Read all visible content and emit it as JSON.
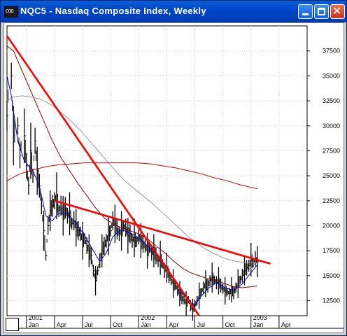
{
  "window": {
    "title": "NQC5 - Nasdaq Composite Index, Weekly",
    "icon": "chart-app-icon",
    "icon_text": "CQG",
    "buttons": {
      "minimize": "minimize-icon",
      "maximize": "maximize-icon",
      "close": "close-icon"
    },
    "close_glyph": "✕"
  },
  "colors": {
    "titlebar": "#0046c8",
    "price": "#000000",
    "ma_fast": "#0000cc",
    "ma_mid": "#880000",
    "ma_slow": "#999999",
    "ma_long": "#cc0000",
    "trendline": "#ff0000",
    "grid": "#d0d0d0"
  },
  "chart_data": {
    "type": "line",
    "title": "",
    "y_axis": {
      "ticks": [
        "37500",
        "35000",
        "32500",
        "30000",
        "27500",
        "25000",
        "22500",
        "20000",
        "17500",
        "15000",
        "12500"
      ],
      "tick_values": [
        37500,
        35000,
        32500,
        30000,
        27500,
        25000,
        22500,
        20000,
        17500,
        15000,
        12500
      ],
      "ylim": [
        11000,
        40000
      ]
    },
    "x_axis": {
      "years": [
        {
          "label": "2001",
          "week": 0
        },
        {
          "label": "2002",
          "week": 52
        },
        {
          "label": "2003",
          "week": 104
        }
      ],
      "months": [
        {
          "label": "Jan",
          "week": 0
        },
        {
          "label": "Apr",
          "week": 13
        },
        {
          "label": "Jul",
          "week": 26
        },
        {
          "label": "Oct",
          "week": 39
        },
        {
          "label": "Jan",
          "week": 52
        },
        {
          "label": "Apr",
          "week": 65
        },
        {
          "label": "Jul",
          "week": 78
        },
        {
          "label": "Oct",
          "week": 91
        },
        {
          "label": "Jan",
          "week": 104
        },
        {
          "label": "Apr",
          "week": 117
        }
      ],
      "xlim": [
        -9,
        130
      ]
    },
    "grid": true,
    "price_key": [
      [
        -9,
        31000
      ],
      [
        -7,
        35000
      ],
      [
        -6,
        29000
      ],
      [
        -4,
        30000
      ],
      [
        -3,
        27000
      ],
      [
        -1,
        29000
      ],
      [
        0,
        26000
      ],
      [
        1,
        24000
      ],
      [
        2,
        27500
      ],
      [
        3,
        25000
      ],
      [
        4,
        28500
      ],
      [
        5,
        25500
      ],
      [
        6,
        24000
      ],
      [
        7,
        22000
      ],
      [
        8,
        19500
      ],
      [
        9,
        17000
      ],
      [
        10,
        20000
      ],
      [
        11,
        21500
      ],
      [
        12,
        22000
      ],
      [
        13,
        22500
      ],
      [
        14,
        23000
      ],
      [
        15,
        21500
      ],
      [
        16,
        22000
      ],
      [
        17,
        21000
      ],
      [
        18,
        21800
      ],
      [
        19,
        21000
      ],
      [
        20,
        21200
      ],
      [
        21,
        20200
      ],
      [
        22,
        20500
      ],
      [
        23,
        19800
      ],
      [
        24,
        19500
      ],
      [
        25,
        19200
      ],
      [
        26,
        18500
      ],
      [
        27,
        18700
      ],
      [
        28,
        18000
      ],
      [
        29,
        17500
      ],
      [
        30,
        17000
      ],
      [
        31,
        15500
      ],
      [
        32,
        14500
      ],
      [
        33,
        15500
      ],
      [
        34,
        16500
      ],
      [
        35,
        17500
      ],
      [
        36,
        18000
      ],
      [
        37,
        18500
      ],
      [
        38,
        19000
      ],
      [
        39,
        19500
      ],
      [
        40,
        20500
      ],
      [
        41,
        20200
      ],
      [
        42,
        19600
      ],
      [
        43,
        19200
      ],
      [
        44,
        19500
      ],
      [
        45,
        20000
      ],
      [
        46,
        19800
      ],
      [
        47,
        19000
      ],
      [
        48,
        19200
      ],
      [
        49,
        18500
      ],
      [
        50,
        18800
      ],
      [
        51,
        18400
      ],
      [
        52,
        19000
      ],
      [
        53,
        18500
      ],
      [
        54,
        18200
      ],
      [
        55,
        18000
      ],
      [
        56,
        17500
      ],
      [
        57,
        17800
      ],
      [
        58,
        17300
      ],
      [
        59,
        17500
      ],
      [
        60,
        17000
      ],
      [
        61,
        16500
      ],
      [
        62,
        16800
      ],
      [
        63,
        16200
      ],
      [
        64,
        15500
      ],
      [
        65,
        15800
      ],
      [
        66,
        15000
      ],
      [
        67,
        14600
      ],
      [
        68,
        14200
      ],
      [
        69,
        14000
      ],
      [
        70,
        13600
      ],
      [
        71,
        13200
      ],
      [
        72,
        12800
      ],
      [
        73,
        12600
      ],
      [
        74,
        12200
      ],
      [
        75,
        12600
      ],
      [
        76,
        12000
      ],
      [
        77,
        11600
      ],
      [
        78,
        12000
      ],
      [
        79,
        12500
      ],
      [
        80,
        13000
      ],
      [
        81,
        13400
      ],
      [
        82,
        13800
      ],
      [
        83,
        14200
      ],
      [
        84,
        14000
      ],
      [
        85,
        14500
      ],
      [
        86,
        14800
      ],
      [
        87,
        14600
      ],
      [
        88,
        14300
      ],
      [
        89,
        14500
      ],
      [
        90,
        14000
      ],
      [
        91,
        13700
      ],
      [
        92,
        13500
      ],
      [
        93,
        13400
      ],
      [
        94,
        13200
      ],
      [
        95,
        13600
      ],
      [
        96,
        13300
      ],
      [
        97,
        13800
      ],
      [
        98,
        14200
      ],
      [
        99,
        14600
      ],
      [
        100,
        15000
      ],
      [
        101,
        15500
      ],
      [
        102,
        15800
      ],
      [
        103,
        16000
      ],
      [
        104,
        16600
      ],
      [
        105,
        16300
      ],
      [
        106,
        16700
      ],
      [
        107,
        16400
      ]
    ],
    "price_range": [
      3,
      1.4,
      10,
      0.2,
      2.5,
      9
    ],
    "series": [
      {
        "key": "ma_fast",
        "line_color": "#0000cc",
        "values": [
          [
            -9,
            35000
          ],
          [
            -7,
            33000
          ],
          [
            -4,
            28500
          ],
          [
            -1,
            26500
          ],
          [
            3,
            25500
          ],
          [
            6,
            24000
          ],
          [
            9,
            21000
          ],
          [
            12,
            20500
          ],
          [
            15,
            21300
          ],
          [
            19,
            21200
          ],
          [
            23,
            20300
          ],
          [
            27,
            19000
          ],
          [
            31,
            17500
          ],
          [
            34,
            16400
          ],
          [
            37,
            17300
          ],
          [
            40,
            18900
          ],
          [
            44,
            19600
          ],
          [
            48,
            19300
          ],
          [
            52,
            18800
          ],
          [
            56,
            18000
          ],
          [
            60,
            17200
          ],
          [
            64,
            16200
          ],
          [
            68,
            14800
          ],
          [
            72,
            13300
          ],
          [
            76,
            12300
          ],
          [
            78,
            12000
          ],
          [
            80,
            12700
          ],
          [
            84,
            13700
          ],
          [
            88,
            14300
          ],
          [
            92,
            13800
          ],
          [
            96,
            13500
          ],
          [
            100,
            14200
          ],
          [
            104,
            15300
          ],
          [
            107,
            16100
          ]
        ]
      },
      {
        "key": "ma_mid",
        "line_color": "#880000",
        "values": [
          [
            -9,
            38000
          ],
          [
            -6,
            37500
          ],
          [
            -3,
            36000
          ],
          [
            0,
            34500
          ],
          [
            4,
            32500
          ],
          [
            8,
            30500
          ],
          [
            12,
            28500
          ],
          [
            16,
            26800
          ],
          [
            20,
            25500
          ],
          [
            24,
            24200
          ],
          [
            28,
            23000
          ],
          [
            32,
            21800
          ],
          [
            36,
            20800
          ],
          [
            40,
            20200
          ],
          [
            44,
            19800
          ],
          [
            48,
            19500
          ],
          [
            52,
            19200
          ],
          [
            56,
            18700
          ],
          [
            60,
            18000
          ],
          [
            64,
            17300
          ],
          [
            68,
            16500
          ],
          [
            72,
            15800
          ],
          [
            76,
            15300
          ],
          [
            80,
            15000
          ],
          [
            84,
            14700
          ],
          [
            88,
            14500
          ],
          [
            92,
            14200
          ],
          [
            96,
            13900
          ],
          [
            100,
            13800
          ],
          [
            104,
            13900
          ],
          [
            107,
            14000
          ]
        ]
      },
      {
        "key": "ma_slow",
        "line_color": "#999999",
        "values": [
          [
            -9,
            32500
          ],
          [
            -6,
            32900
          ],
          [
            -2,
            33000
          ],
          [
            2,
            32900
          ],
          [
            6,
            32700
          ],
          [
            10,
            32300
          ],
          [
            14,
            31700
          ],
          [
            18,
            31000
          ],
          [
            22,
            30200
          ],
          [
            26,
            29300
          ],
          [
            30,
            28300
          ],
          [
            34,
            27300
          ],
          [
            38,
            26300
          ],
          [
            42,
            25300
          ],
          [
            46,
            24400
          ],
          [
            50,
            23700
          ],
          [
            54,
            23000
          ],
          [
            58,
            22300
          ],
          [
            62,
            21500
          ],
          [
            66,
            20700
          ],
          [
            70,
            19900
          ],
          [
            74,
            19100
          ],
          [
            78,
            18400
          ],
          [
            82,
            17800
          ],
          [
            86,
            17300
          ],
          [
            90,
            16900
          ],
          [
            94,
            16600
          ],
          [
            98,
            16400
          ],
          [
            102,
            16300
          ],
          [
            107,
            16300
          ]
        ]
      },
      {
        "key": "ma_long",
        "line_color": "#cc0000",
        "values": [
          [
            -9,
            24500
          ],
          [
            -3,
            25200
          ],
          [
            3,
            25600
          ],
          [
            9,
            25900
          ],
          [
            15,
            26100
          ],
          [
            21,
            26200
          ],
          [
            27,
            26300
          ],
          [
            33,
            26300
          ],
          [
            39,
            26300
          ],
          [
            45,
            26300
          ],
          [
            51,
            26300
          ],
          [
            57,
            26200
          ],
          [
            63,
            26000
          ],
          [
            69,
            25800
          ],
          [
            75,
            25500
          ],
          [
            81,
            25200
          ],
          [
            87,
            24800
          ],
          [
            93,
            24500
          ],
          [
            99,
            24100
          ],
          [
            105,
            23800
          ],
          [
            107,
            23700
          ]
        ]
      },
      {
        "key": "trend_resistance",
        "line_color": "#ff0000",
        "values": [
          [
            -9,
            39000
          ],
          [
            80,
            11000
          ]
        ]
      },
      {
        "key": "trend_falling",
        "line_color": "#ff0000",
        "values": [
          [
            13,
            22500
          ],
          [
            113,
            16200
          ]
        ]
      }
    ]
  }
}
